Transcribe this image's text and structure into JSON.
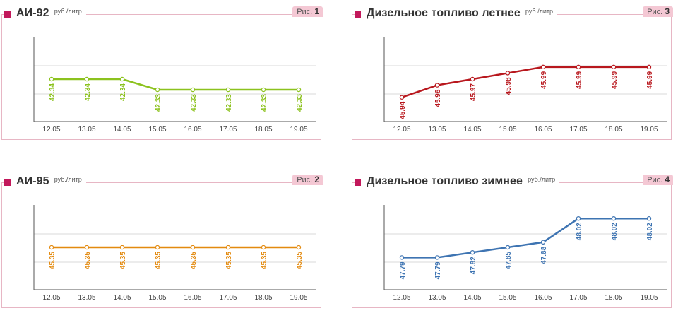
{
  "chart_data": [
    {
      "id": "ai92",
      "type": "line",
      "title": "АИ-92",
      "unit": "руб./литр",
      "fig_prefix": "Рис.",
      "fig_number": "1",
      "categories": [
        "12.05",
        "13.05",
        "14.05",
        "15.05",
        "16.05",
        "17.05",
        "18.05",
        "19.05"
      ],
      "values": [
        42.34,
        42.34,
        42.34,
        42.33,
        42.33,
        42.33,
        42.33,
        42.33
      ],
      "labels": [
        "42.34",
        "42.34",
        "42.34",
        "42.33",
        "42.33",
        "42.33",
        "42.33",
        "42.33"
      ],
      "ylim": [
        42.3,
        42.38
      ],
      "color": "#8cc21e",
      "grid": true
    },
    {
      "id": "ai95",
      "type": "line",
      "title": "АИ-95",
      "unit": "руб./литр",
      "fig_prefix": "Рис.",
      "fig_number": "2",
      "categories": [
        "12.05",
        "13.05",
        "14.05",
        "15.05",
        "16.05",
        "17.05",
        "18.05",
        "19.05"
      ],
      "values": [
        45.35,
        45.35,
        45.35,
        45.35,
        45.35,
        45.35,
        45.35,
        45.35
      ],
      "labels": [
        "45.35",
        "45.35",
        "45.35",
        "45.35",
        "45.35",
        "45.35",
        "45.35",
        "45.35"
      ],
      "ylim": [
        45.3,
        45.4
      ],
      "color": "#e38a0f",
      "grid": true
    },
    {
      "id": "diesel_summer",
      "type": "line",
      "title": "Дизельное топливо летнее",
      "unit": "руб./литр",
      "fig_prefix": "Рис.",
      "fig_number": "3",
      "categories": [
        "12.05",
        "13.05",
        "14.05",
        "15.05",
        "16.05",
        "17.05",
        "18.05",
        "19.05"
      ],
      "values": [
        45.94,
        45.96,
        45.97,
        45.98,
        45.99,
        45.99,
        45.99,
        45.99
      ],
      "labels": [
        "45.94",
        "45.96",
        "45.97",
        "45.98",
        "45.99",
        "45.99",
        "45.99",
        "45.99"
      ],
      "ylim": [
        45.9,
        46.04
      ],
      "color": "#b8171d",
      "grid": true
    },
    {
      "id": "diesel_winter",
      "type": "line",
      "title": "Дизельное топливо зимнее",
      "unit": "руб./литр",
      "fig_prefix": "Рис.",
      "fig_number": "4",
      "categories": [
        "12.05",
        "13.05",
        "14.05",
        "15.05",
        "16.05",
        "17.05",
        "18.05",
        "19.05"
      ],
      "values": [
        47.79,
        47.79,
        47.82,
        47.85,
        47.88,
        48.02,
        48.02,
        48.02
      ],
      "labels": [
        "47.79",
        "47.79",
        "47.82",
        "47.85",
        "47.88",
        "48.02",
        "48.02",
        "48.02"
      ],
      "ylim": [
        47.6,
        48.1
      ],
      "color": "#3e74b2",
      "grid": true
    }
  ],
  "colors": {
    "bullet": "#c2185b",
    "tag_bg": "#f4c8d4",
    "frame": "#e7b6c4",
    "axis": "#555555",
    "gridline": "#d8d8d8"
  }
}
